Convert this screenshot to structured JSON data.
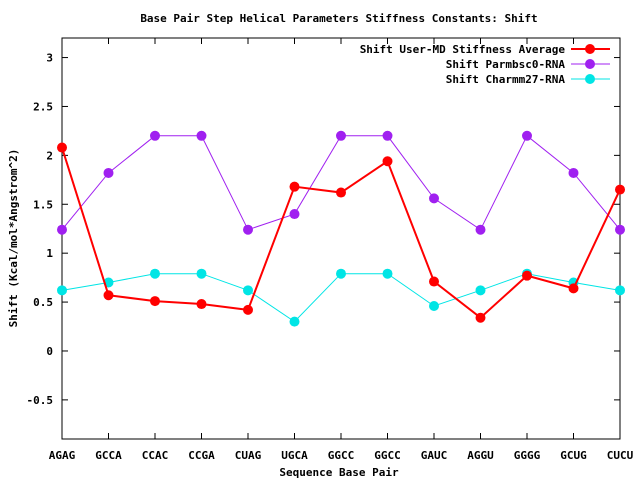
{
  "chart_data": {
    "type": "line",
    "title": "Base Pair Step Helical Parameters Stiffness Constants: Shift",
    "xlabel": "Sequence Base Pair",
    "ylabel": "Shift (Kcal/mol*Angstrom^2)",
    "ylim": [
      -0.9,
      3.2
    ],
    "yticks": [
      -0.5,
      0,
      0.5,
      1,
      1.5,
      2,
      2.5,
      3
    ],
    "ytick_labels": [
      "-0.5",
      "0",
      "0.5",
      "1",
      "1.5",
      "2",
      "2.5",
      "3"
    ],
    "categories": [
      "AGAG",
      "GCCA",
      "CCAC",
      "CCGA",
      "CUAG",
      "UGCA",
      "GGCC",
      "GGCC",
      "GAUC",
      "AGGU",
      "GGGG",
      "GCUG",
      "CUCU"
    ],
    "grid": false,
    "legend_position": "top-right",
    "series": [
      {
        "name": "Shift User-MD Stiffness Average",
        "color": "#ff0000",
        "values": [
          2.08,
          0.57,
          0.51,
          0.48,
          0.42,
          1.68,
          1.62,
          1.94,
          0.71,
          0.34,
          0.77,
          0.64,
          1.65
        ]
      },
      {
        "name": "Shift Parmbsc0-RNA",
        "color": "#a020f0",
        "values": [
          1.24,
          1.82,
          2.2,
          2.2,
          1.24,
          1.4,
          2.2,
          2.2,
          1.56,
          1.24,
          2.2,
          1.82,
          1.24
        ]
      },
      {
        "name": "Shift Charmm27-RNA",
        "color": "#00e5e5",
        "values": [
          0.62,
          0.7,
          0.79,
          0.79,
          0.62,
          0.3,
          0.79,
          0.79,
          0.46,
          0.62,
          0.79,
          0.7,
          0.62
        ]
      }
    ]
  }
}
